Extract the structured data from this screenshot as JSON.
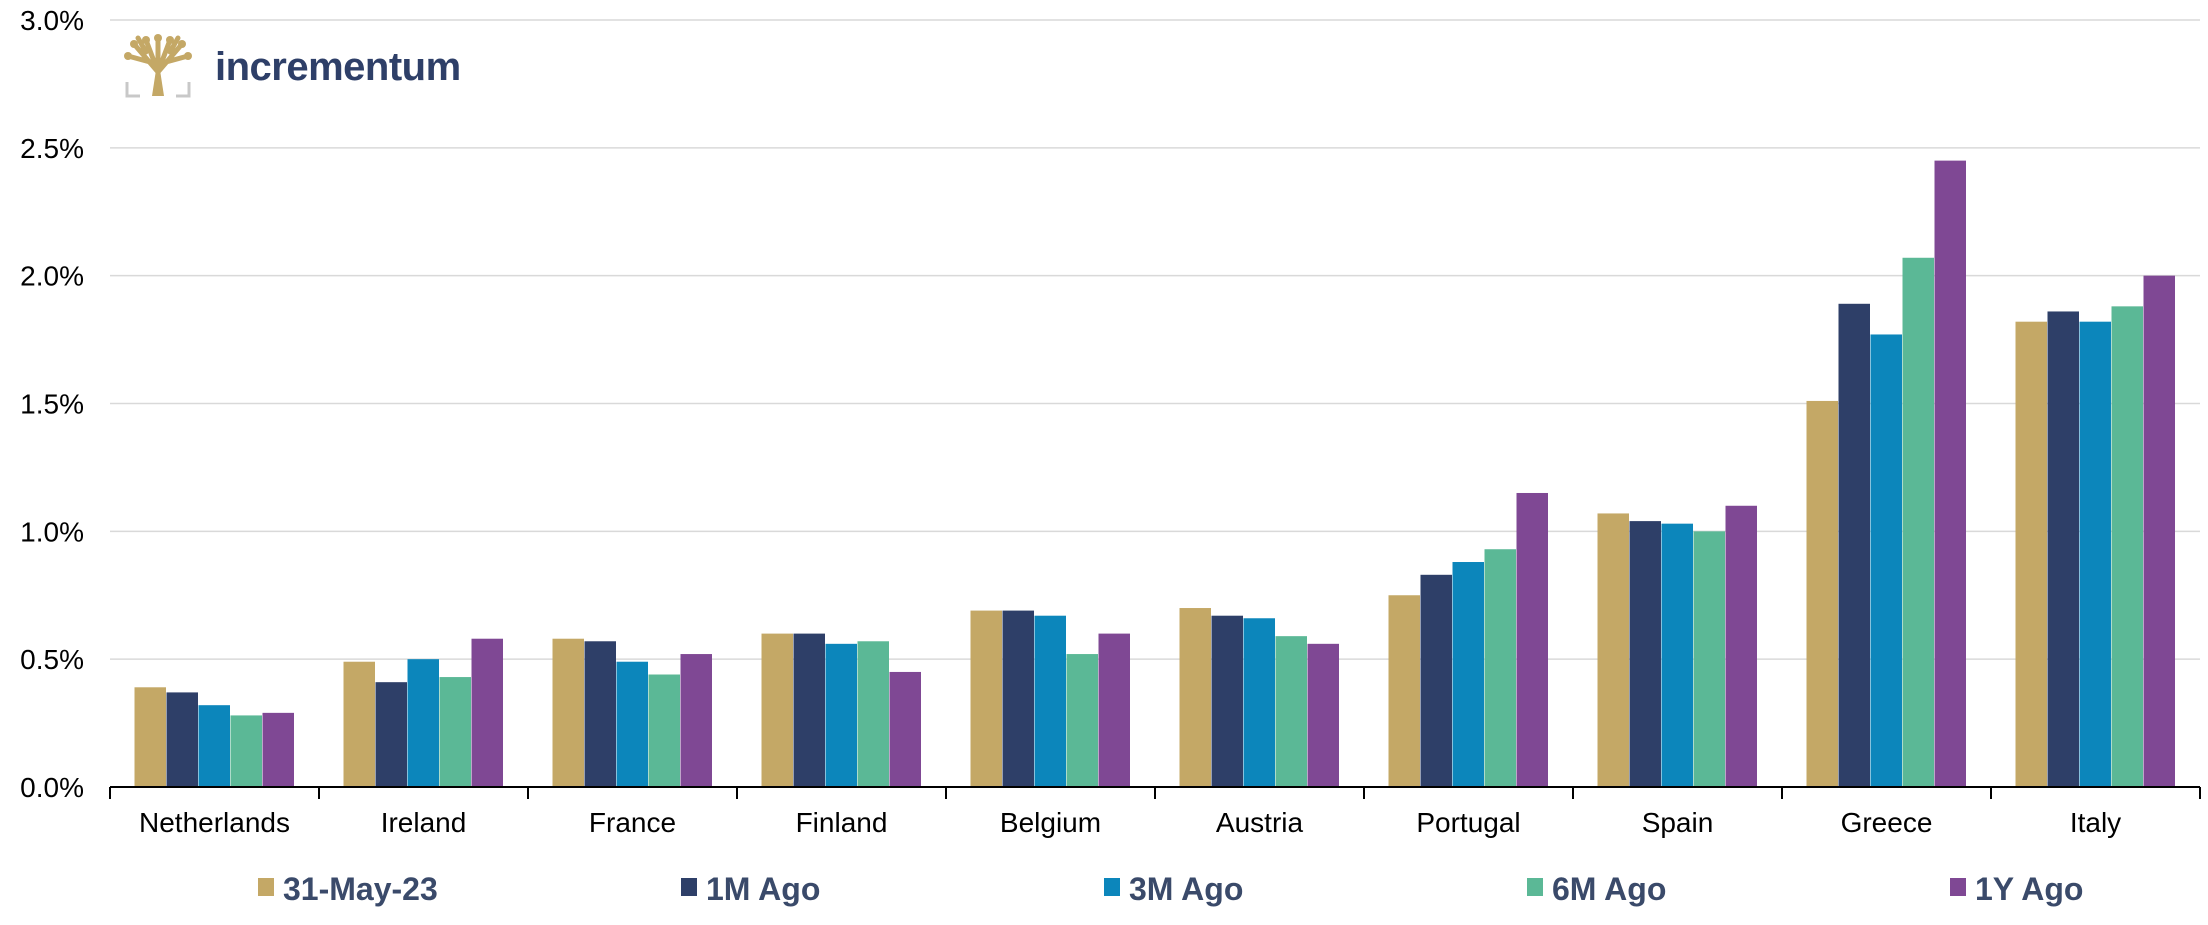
{
  "brand": {
    "name": "incrementum",
    "logo_icon": "tree-icon",
    "color": "#2e3f68",
    "logo_color": "#c4a866"
  },
  "chart_data": {
    "type": "bar",
    "categories": [
      "Netherlands",
      "Ireland",
      "France",
      "Finland",
      "Belgium",
      "Austria",
      "Portugal",
      "Spain",
      "Greece",
      "Italy"
    ],
    "series": [
      {
        "name": "31-May-23",
        "color": "#c4a866",
        "values": [
          0.39,
          0.49,
          0.58,
          0.6,
          0.69,
          0.7,
          0.75,
          1.07,
          1.51,
          1.82
        ]
      },
      {
        "name": "1M Ago",
        "color": "#2e3f68",
        "values": [
          0.37,
          0.41,
          0.57,
          0.6,
          0.69,
          0.67,
          0.83,
          1.04,
          1.89,
          1.86
        ]
      },
      {
        "name": "3M Ago",
        "color": "#0c86bb",
        "values": [
          0.32,
          0.5,
          0.49,
          0.56,
          0.67,
          0.66,
          0.88,
          1.03,
          1.77,
          1.82
        ]
      },
      {
        "name": "6M Ago",
        "color": "#5bb896",
        "values": [
          0.28,
          0.43,
          0.44,
          0.57,
          0.52,
          0.59,
          0.93,
          1.0,
          2.07,
          1.88
        ]
      },
      {
        "name": "1Y Ago",
        "color": "#7f4894",
        "values": [
          0.29,
          0.58,
          0.52,
          0.45,
          0.6,
          0.56,
          1.15,
          1.1,
          2.45,
          2.0
        ]
      }
    ],
    "ylim": [
      0,
      3.0
    ],
    "yticks": [
      "0.0%",
      "0.5%",
      "1.0%",
      "1.5%",
      "2.0%",
      "2.5%",
      "3.0%"
    ],
    "ytick_values": [
      0,
      0.5,
      1.0,
      1.5,
      2.0,
      2.5,
      3.0
    ],
    "grid": true,
    "legend_position": "bottom",
    "title": "",
    "xlabel": "",
    "ylabel": ""
  }
}
